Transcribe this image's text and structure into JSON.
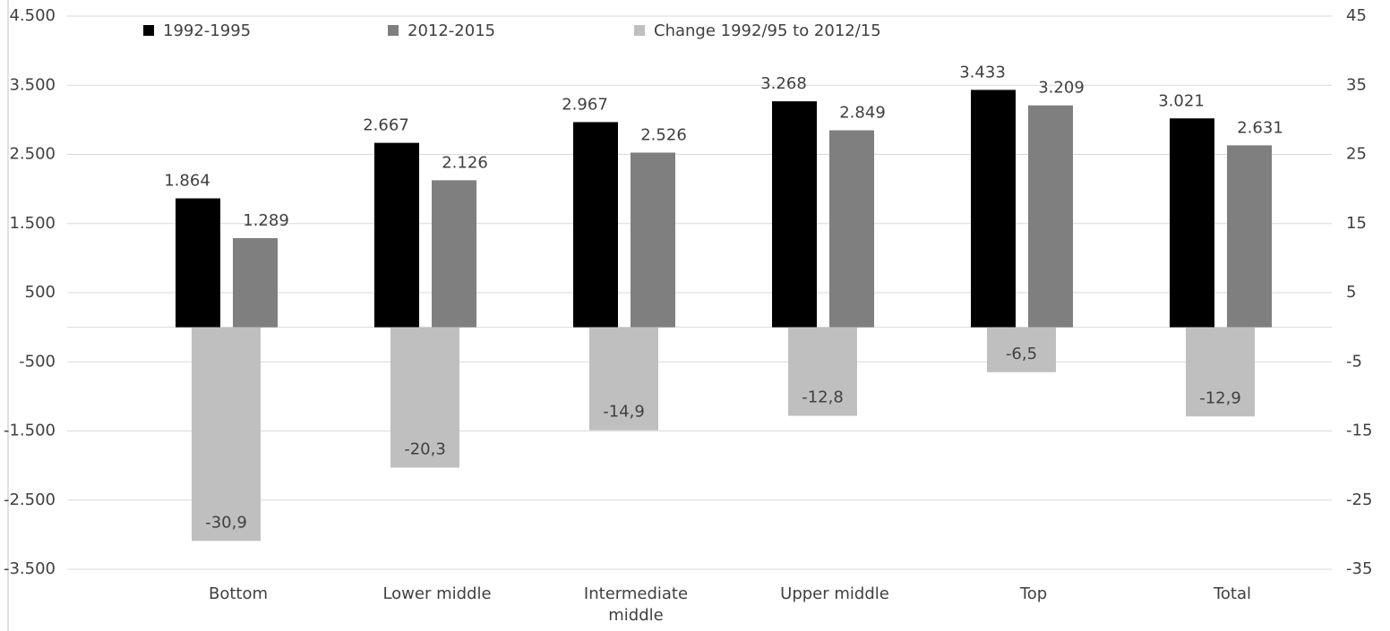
{
  "chart_data": {
    "type": "bar",
    "categories": [
      "Bottom",
      "Lower middle",
      "Intermediate middle",
      "Upper middle",
      "Top",
      "Total"
    ],
    "series": [
      {
        "name": "1992-1995",
        "color": "#000000",
        "values": [
          1864,
          2667,
          2967,
          3268,
          3433,
          3021
        ],
        "value_labels": [
          "1.864",
          "2.667",
          "2.967",
          "3.268",
          "3.433",
          "3.021"
        ]
      },
      {
        "name": "2012-2015",
        "color": "#7f7f7f",
        "values": [
          1289,
          2126,
          2526,
          2849,
          3209,
          2631
        ],
        "value_labels": [
          "1.289",
          "2.126",
          "2.526",
          "2.849",
          "3.209",
          "2.631"
        ]
      },
      {
        "name": "Change 1992/95 to 2012/15",
        "color": "#bfbfbf",
        "axis": "y2",
        "values": [
          -30.9,
          -20.3,
          -14.9,
          -12.8,
          -6.5,
          -12.9
        ],
        "value_labels": [
          "-30,9",
          "-20,3",
          "-14,9",
          "-12,8",
          "-6,5",
          "-12,9"
        ]
      }
    ],
    "ylim": [
      -3500,
      4500
    ],
    "yticks": [
      {
        "value": -3500,
        "label": "-3.500"
      },
      {
        "value": -2500,
        "label": "-2.500"
      },
      {
        "value": -1500,
        "label": "-1.500"
      },
      -500,
      500,
      {
        "value": 1500,
        "label": "1.500"
      },
      {
        "value": 2500,
        "label": "2.500"
      },
      {
        "value": 3500,
        "label": "3.500"
      },
      {
        "value": 4500,
        "label": "4.500"
      }
    ],
    "y2lim": [
      -35,
      45
    ],
    "y2ticks": [
      -35,
      -25,
      -15,
      -5,
      5,
      15,
      25,
      35,
      45
    ],
    "grid": true,
    "legend": "top-left"
  }
}
